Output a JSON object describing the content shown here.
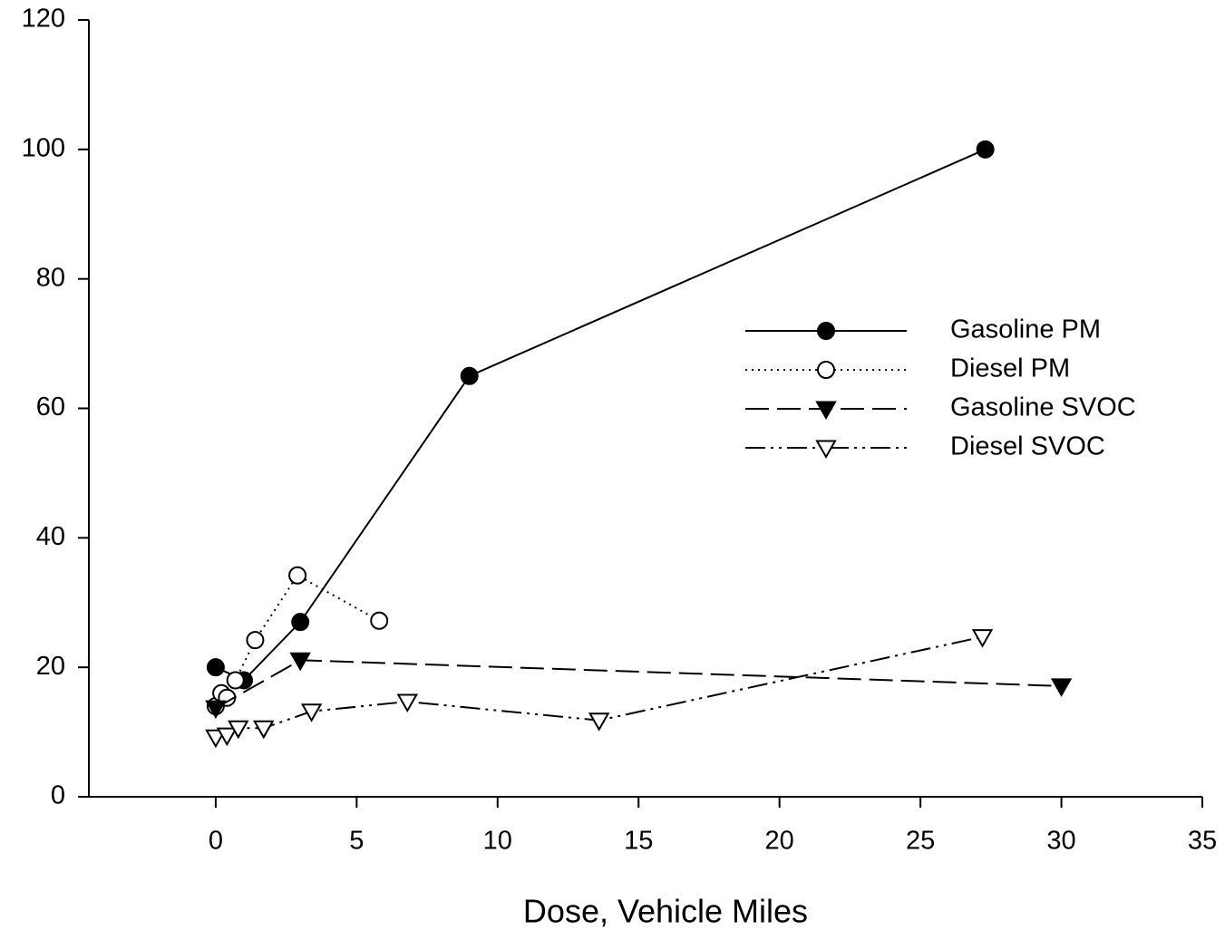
{
  "chart_data": {
    "type": "line",
    "x_label": "Dose, Vehicle Miles",
    "xlim": [
      -4.5,
      35
    ],
    "xticks": [
      0,
      5,
      10,
      15,
      20,
      25,
      30,
      35
    ],
    "ylim": [
      0,
      120
    ],
    "yticks": [
      0,
      20,
      40,
      60,
      80,
      100,
      120
    ],
    "legend_position": "upper-right",
    "series": [
      {
        "name": "Gasoline PM",
        "color": "#000000",
        "line_style": "solid",
        "marker": "circle",
        "marker_fill": "filled",
        "x": [
          0,
          1.0,
          3.0,
          9.0,
          27.3
        ],
        "values": [
          20,
          18,
          27,
          65,
          100
        ]
      },
      {
        "name": "Diesel PM",
        "color": "#000000",
        "line_style": "dotted",
        "marker": "circle",
        "marker_fill": "open",
        "x": [
          0,
          0.2,
          0.4,
          0.7,
          1.4,
          2.9,
          5.8
        ],
        "values": [
          14,
          16,
          15.3,
          18,
          24.2,
          34.2,
          27.2
        ]
      },
      {
        "name": "Gasoline SVOC",
        "color": "#000000",
        "line_style": "dashed",
        "marker": "triangle-down",
        "marker_fill": "filled",
        "x": [
          0,
          3.0,
          30
        ],
        "values": [
          13.7,
          21.1,
          17.1
        ]
      },
      {
        "name": "Diesel SVOC",
        "color": "#000000",
        "line_style": "dash-dot-dot",
        "marker": "triangle-down",
        "marker_fill": "open",
        "x": [
          0,
          0.4,
          0.8,
          1.7,
          3.4,
          6.8,
          13.6,
          27.2
        ],
        "values": [
          9.2,
          9.5,
          10.6,
          10.6,
          13.2,
          14.7,
          11.8,
          24.7
        ]
      }
    ]
  }
}
